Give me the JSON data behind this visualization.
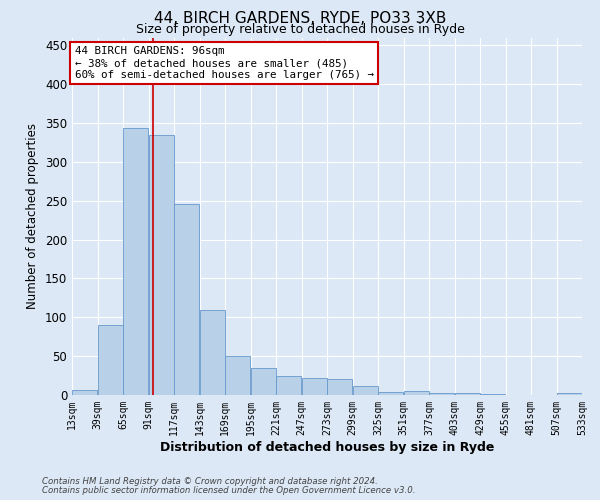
{
  "title": "44, BIRCH GARDENS, RYDE, PO33 3XB",
  "subtitle": "Size of property relative to detached houses in Ryde",
  "xlabel": "Distribution of detached houses by size in Ryde",
  "ylabel": "Number of detached properties",
  "bar_color": "#b8d0e8",
  "bar_edge_color": "#6699cc",
  "vline_color": "#cc0000",
  "vline_x": 96,
  "annotation_title": "44 BIRCH GARDENS: 96sqm",
  "annotation_line2": "← 38% of detached houses are smaller (485)",
  "annotation_line3": "60% of semi-detached houses are larger (765) →",
  "annotation_box_color": "#ffffff",
  "annotation_box_edge_color": "#cc0000",
  "footnote1": "Contains HM Land Registry data © Crown copyright and database right 2024.",
  "footnote2": "Contains public sector information licensed under the Open Government Licence v3.0.",
  "bins": [
    13,
    39,
    65,
    91,
    117,
    143,
    169,
    195,
    221,
    247,
    273,
    299,
    325,
    351,
    377,
    403,
    429,
    455,
    481,
    507,
    533
  ],
  "values": [
    7,
    90,
    343,
    335,
    246,
    110,
    50,
    35,
    25,
    22,
    21,
    11,
    4,
    5,
    2,
    2,
    1,
    0,
    0,
    3
  ],
  "ylim": [
    0,
    460
  ],
  "background_color": "#dce8f5",
  "plot_bg_color": "#dce8f5",
  "grid_color": "#ffffff",
  "tick_labels": [
    "13sqm",
    "39sqm",
    "65sqm",
    "91sqm",
    "117sqm",
    "143sqm",
    "169sqm",
    "195sqm",
    "221sqm",
    "247sqm",
    "273sqm",
    "299sqm",
    "325sqm",
    "351sqm",
    "377sqm",
    "403sqm",
    "429sqm",
    "455sqm",
    "481sqm",
    "507sqm",
    "533sqm"
  ],
  "title_fontsize": 11,
  "subtitle_fontsize": 9,
  "ylabel_fontsize": 8.5,
  "xlabel_fontsize": 9
}
